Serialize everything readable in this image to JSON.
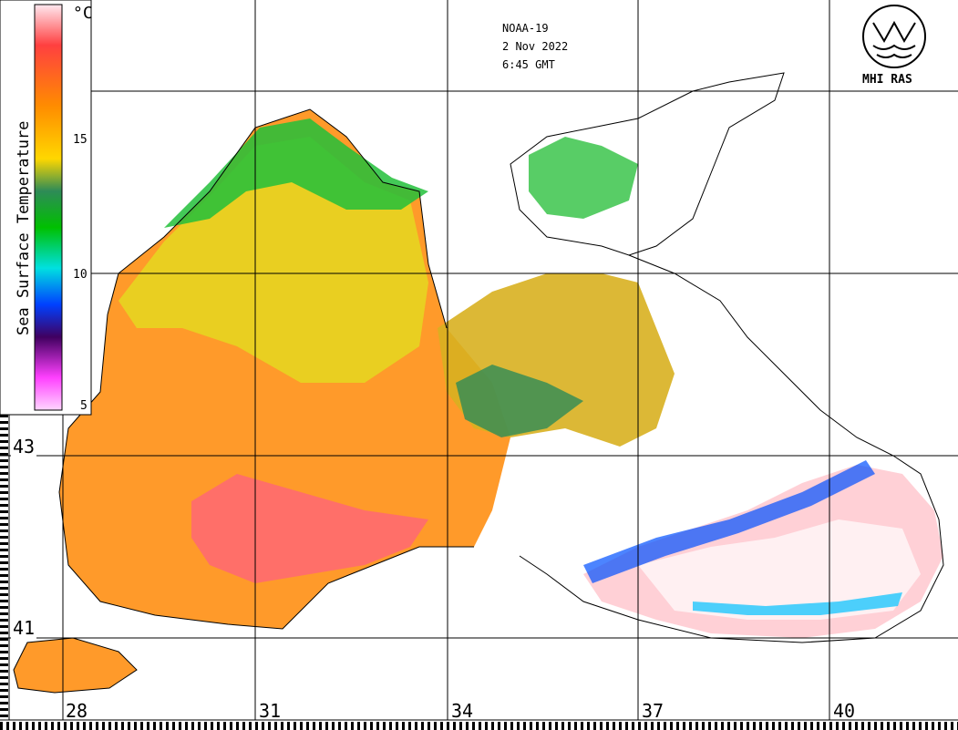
{
  "header": {
    "satellite": "NOAA-19",
    "date": "2 Nov 2022",
    "time": "6:45 GMT"
  },
  "logo": {
    "name": "MHI RAS"
  },
  "colorbar": {
    "title": "Sea Surface Temperature",
    "unit": "°C",
    "ticks": [
      "15",
      "10",
      "5"
    ],
    "colors": [
      "#ffd6e8",
      "#ff4040",
      "#ff8c00",
      "#ffd700",
      "#2e8b57",
      "#00c000",
      "#00e0e0",
      "#0040ff",
      "#400060",
      "#ff40ff",
      "#ffd6ff"
    ]
  },
  "axes": {
    "longitudes": [
      "28",
      "31",
      "34",
      "37",
      "40"
    ],
    "latitudes": [
      "43",
      "41"
    ]
  },
  "colors": {
    "warm_core": "#ff6a60",
    "sea_main": "#ff9a2a",
    "shelf": "#e5d820",
    "cold": "#22c03a",
    "cloud": "#ffffff"
  }
}
